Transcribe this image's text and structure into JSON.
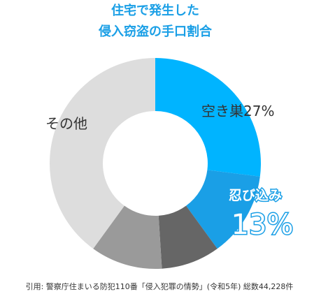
{
  "chart_data": {
    "type": "donut",
    "title": [
      "住宅で発生した",
      "侵入窃盗の手口割合"
    ],
    "categories": [
      "空き巣",
      "忍び込み",
      null,
      null,
      "その他"
    ],
    "values": [
      27,
      13,
      9,
      11,
      40
    ],
    "value_labels": [
      "27%",
      "13%",
      null,
      null,
      null
    ],
    "colors": [
      "#00b4ff",
      "#1a9fe6",
      "#666666",
      "#9a9a9a",
      "#dddddd"
    ],
    "source": "引用: 警察庁住まいる防犯110番「侵入犯罪の情勢」(令和5年) 総数44,228件"
  }
}
